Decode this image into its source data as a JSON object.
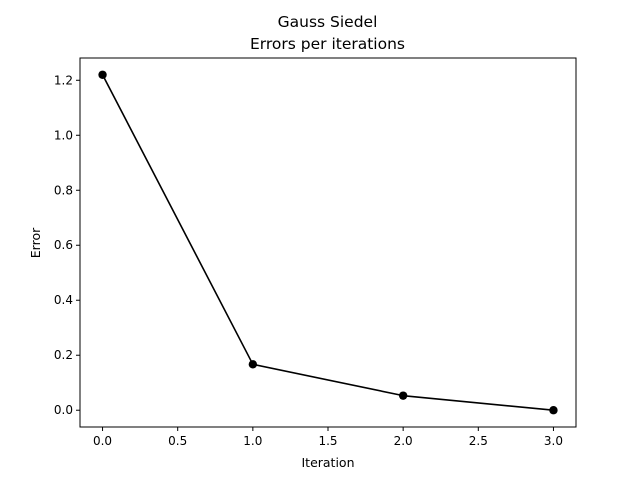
{
  "chart_data": {
    "type": "line",
    "title": "Gauss Siedel",
    "subtitle": "Errors per iterations",
    "xlabel": "Iteration",
    "ylabel": "Error",
    "xlim": [
      -0.15,
      3.15
    ],
    "ylim": [
      -0.061,
      1.281
    ],
    "x_ticks": [
      0.0,
      0.5,
      1.0,
      1.5,
      2.0,
      2.5,
      3.0
    ],
    "x_tick_labels": [
      "0.0",
      "0.5",
      "1.0",
      "1.5",
      "2.0",
      "2.5",
      "3.0"
    ],
    "y_ticks": [
      0.0,
      0.2,
      0.4,
      0.6,
      0.8,
      1.0,
      1.2
    ],
    "y_tick_labels": [
      "0.0",
      "0.2",
      "0.4",
      "0.6",
      "0.8",
      "1.0",
      "1.2"
    ],
    "grid": false,
    "legend": false,
    "series": [
      {
        "x": [
          0,
          1,
          2,
          3
        ],
        "values": [
          1.22,
          0.167,
          0.053,
          0.0
        ],
        "color": "#000000",
        "marker": "circle"
      }
    ]
  }
}
